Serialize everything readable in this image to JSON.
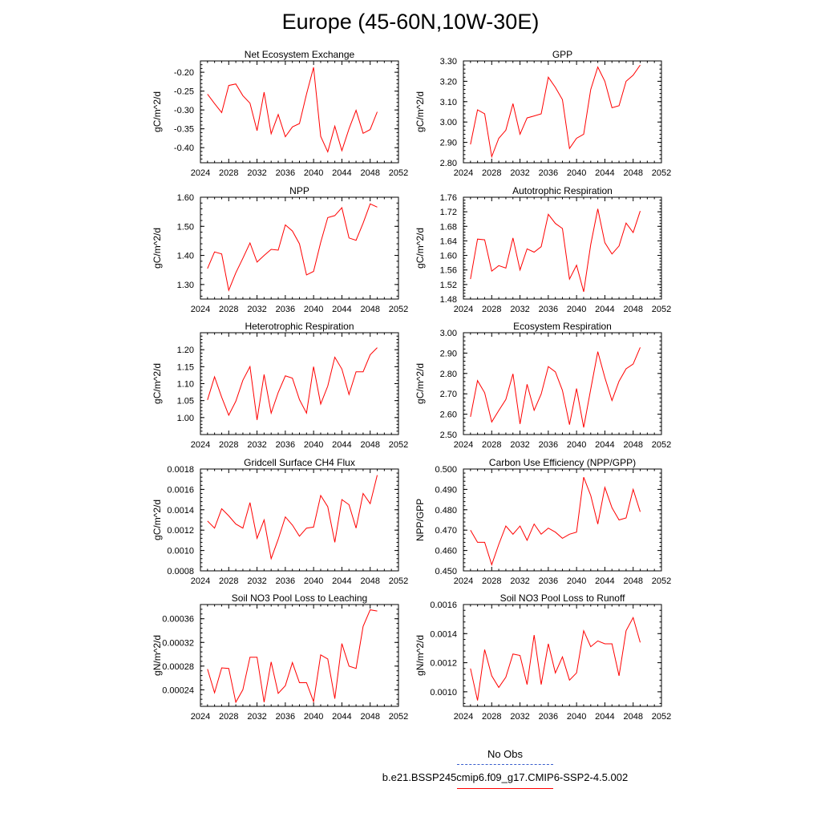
{
  "page_title": "Europe (45-60N,10W-30E)",
  "legend": {
    "entries": [
      {
        "label": "No Obs",
        "color": "#3a5fcd",
        "dash": "dashed"
      },
      {
        "label": "b.e21.BSSP245cmip6.f09_g17.CMIP6-SSP2-4.5.002",
        "color": "#ff0000",
        "dash": "solid"
      }
    ]
  },
  "chart_data": [
    {
      "type": "line",
      "title": "Net Ecosystem Exchange",
      "xlabel": "",
      "ylabel": "gC/m^2/d",
      "xlim": [
        2024,
        2052
      ],
      "ylim": [
        -0.44,
        -0.17
      ],
      "xticks": [
        2024,
        2028,
        2032,
        2036,
        2040,
        2044,
        2048,
        2052
      ],
      "yticks": [
        -0.4,
        -0.35,
        -0.3,
        -0.25,
        -0.2
      ],
      "ytick_labels": [
        "-0.40",
        "-0.35",
        "-0.30",
        "-0.25",
        "-0.20"
      ],
      "series": [
        {
          "color": "#ff0000",
          "x": [
            2025,
            2026,
            2027,
            2028,
            2029,
            2030,
            2031,
            2032,
            2033,
            2034,
            2035,
            2036,
            2037,
            2038,
            2039,
            2040,
            2041,
            2042,
            2043,
            2044,
            2045,
            2046,
            2047,
            2048,
            2049
          ],
          "values": [
            -0.258,
            -0.283,
            -0.307,
            -0.235,
            -0.231,
            -0.262,
            -0.282,
            -0.355,
            -0.253,
            -0.363,
            -0.312,
            -0.371,
            -0.345,
            -0.336,
            -0.258,
            -0.187,
            -0.37,
            -0.411,
            -0.343,
            -0.408,
            -0.35,
            -0.301,
            -0.362,
            -0.352,
            -0.305
          ]
        }
      ]
    },
    {
      "type": "line",
      "title": "GPP",
      "xlabel": "",
      "ylabel": "gC/m^2/d",
      "xlim": [
        2024,
        2052
      ],
      "ylim": [
        2.8,
        3.3
      ],
      "xticks": [
        2024,
        2028,
        2032,
        2036,
        2040,
        2044,
        2048,
        2052
      ],
      "yticks": [
        2.8,
        2.9,
        3.0,
        3.1,
        3.2,
        3.3
      ],
      "ytick_labels": [
        "2.80",
        "2.90",
        "3.00",
        "3.10",
        "3.20",
        "3.30"
      ],
      "series": [
        {
          "color": "#ff0000",
          "x": [
            2025,
            2026,
            2027,
            2028,
            2029,
            2030,
            2031,
            2032,
            2033,
            2034,
            2035,
            2036,
            2037,
            2038,
            2039,
            2040,
            2041,
            2042,
            2043,
            2044,
            2045,
            2046,
            2047,
            2048,
            2049
          ],
          "values": [
            2.89,
            3.06,
            3.04,
            2.83,
            2.92,
            2.96,
            3.09,
            2.94,
            3.02,
            3.03,
            3.04,
            3.22,
            3.17,
            3.11,
            2.87,
            2.92,
            2.94,
            3.16,
            3.27,
            3.2,
            3.07,
            3.08,
            3.2,
            3.23,
            3.28
          ]
        }
      ]
    },
    {
      "type": "line",
      "title": "NPP",
      "xlabel": "",
      "ylabel": "gC/m^2/d",
      "xlim": [
        2024,
        2052
      ],
      "ylim": [
        1.25,
        1.6
      ],
      "xticks": [
        2024,
        2028,
        2032,
        2036,
        2040,
        2044,
        2048,
        2052
      ],
      "yticks": [
        1.3,
        1.4,
        1.5,
        1.6
      ],
      "ytick_labels": [
        "1.30",
        "1.40",
        "1.50",
        "1.60"
      ],
      "series": [
        {
          "color": "#ff0000",
          "x": [
            2025,
            2026,
            2027,
            2028,
            2029,
            2030,
            2031,
            2032,
            2033,
            2034,
            2035,
            2036,
            2037,
            2038,
            2039,
            2040,
            2041,
            2042,
            2043,
            2044,
            2045,
            2046,
            2047,
            2048,
            2049
          ],
          "values": [
            1.355,
            1.412,
            1.405,
            1.28,
            1.34,
            1.39,
            1.443,
            1.377,
            1.4,
            1.421,
            1.418,
            1.505,
            1.484,
            1.44,
            1.333,
            1.345,
            1.445,
            1.53,
            1.537,
            1.564,
            1.46,
            1.452,
            1.511,
            1.577,
            1.566
          ]
        }
      ]
    },
    {
      "type": "line",
      "title": "Autotrophic Respiration",
      "xlabel": "",
      "ylabel": "gC/m^2/d",
      "xlim": [
        2024,
        2052
      ],
      "ylim": [
        1.48,
        1.76
      ],
      "xticks": [
        2024,
        2028,
        2032,
        2036,
        2040,
        2044,
        2048,
        2052
      ],
      "yticks": [
        1.48,
        1.52,
        1.56,
        1.6,
        1.64,
        1.68,
        1.72,
        1.76
      ],
      "ytick_labels": [
        "1.48",
        "1.52",
        "1.56",
        "1.60",
        "1.64",
        "1.68",
        "1.72",
        "1.76"
      ],
      "series": [
        {
          "color": "#ff0000",
          "x": [
            2025,
            2026,
            2027,
            2028,
            2029,
            2030,
            2031,
            2032,
            2033,
            2034,
            2035,
            2036,
            2037,
            2038,
            2039,
            2040,
            2041,
            2042,
            2043,
            2044,
            2045,
            2046,
            2047,
            2048,
            2049
          ],
          "values": [
            1.535,
            1.645,
            1.643,
            1.557,
            1.572,
            1.565,
            1.648,
            1.56,
            1.618,
            1.609,
            1.624,
            1.713,
            1.688,
            1.674,
            1.535,
            1.573,
            1.5,
            1.63,
            1.728,
            1.635,
            1.604,
            1.626,
            1.689,
            1.663,
            1.722
          ]
        }
      ]
    },
    {
      "type": "line",
      "title": "Heterotrophic Respiration",
      "xlabel": "",
      "ylabel": "gC/m^2/d",
      "xlim": [
        2024,
        2052
      ],
      "ylim": [
        0.95,
        1.25
      ],
      "xticks": [
        2024,
        2028,
        2032,
        2036,
        2040,
        2044,
        2048,
        2052
      ],
      "yticks": [
        1.0,
        1.05,
        1.1,
        1.15,
        1.2
      ],
      "ytick_labels": [
        "1.00",
        "1.05",
        "1.10",
        "1.15",
        "1.20"
      ],
      "series": [
        {
          "color": "#ff0000",
          "x": [
            2025,
            2026,
            2027,
            2028,
            2029,
            2030,
            2031,
            2032,
            2033,
            2034,
            2035,
            2036,
            2037,
            2038,
            2039,
            2040,
            2041,
            2042,
            2043,
            2044,
            2045,
            2046,
            2047,
            2048,
            2049
          ],
          "values": [
            1.052,
            1.12,
            1.06,
            1.007,
            1.048,
            1.11,
            1.15,
            0.993,
            1.127,
            1.013,
            1.074,
            1.123,
            1.116,
            1.053,
            1.013,
            1.15,
            1.04,
            1.093,
            1.178,
            1.143,
            1.068,
            1.135,
            1.135,
            1.185,
            1.206
          ]
        }
      ]
    },
    {
      "type": "line",
      "title": "Ecosystem Respiration",
      "xlabel": "",
      "ylabel": "gC/m^2/d",
      "xlim": [
        2024,
        2052
      ],
      "ylim": [
        2.5,
        3.0
      ],
      "xticks": [
        2024,
        2028,
        2032,
        2036,
        2040,
        2044,
        2048,
        2052
      ],
      "yticks": [
        2.5,
        2.6,
        2.7,
        2.8,
        2.9,
        3.0
      ],
      "ytick_labels": [
        "2.50",
        "2.60",
        "2.70",
        "2.80",
        "2.90",
        "3.00"
      ],
      "series": [
        {
          "color": "#ff0000",
          "x": [
            2025,
            2026,
            2027,
            2028,
            2029,
            2030,
            2031,
            2032,
            2033,
            2034,
            2035,
            2036,
            2037,
            2038,
            2039,
            2040,
            2041,
            2042,
            2043,
            2044,
            2045,
            2046,
            2047,
            2048,
            2049
          ],
          "values": [
            2.587,
            2.765,
            2.705,
            2.562,
            2.618,
            2.672,
            2.798,
            2.552,
            2.747,
            2.619,
            2.699,
            2.834,
            2.808,
            2.717,
            2.549,
            2.726,
            2.535,
            2.723,
            2.907,
            2.78,
            2.667,
            2.762,
            2.823,
            2.846,
            2.928
          ]
        }
      ]
    },
    {
      "type": "line",
      "title": "Gridcell Surface CH4 Flux",
      "xlabel": "",
      "ylabel": "gC/m^2/d",
      "xlim": [
        2024,
        2052
      ],
      "ylim": [
        0.0008,
        0.0018
      ],
      "xticks": [
        2024,
        2028,
        2032,
        2036,
        2040,
        2044,
        2048,
        2052
      ],
      "yticks": [
        0.0008,
        0.001,
        0.0012,
        0.0014,
        0.0016,
        0.0018
      ],
      "ytick_labels": [
        "0.0008",
        "0.0010",
        "0.0012",
        "0.0014",
        "0.0016",
        "0.0018"
      ],
      "series": [
        {
          "color": "#ff0000",
          "x": [
            2025,
            2026,
            2027,
            2028,
            2029,
            2030,
            2031,
            2032,
            2033,
            2034,
            2035,
            2036,
            2037,
            2038,
            2039,
            2040,
            2041,
            2042,
            2043,
            2044,
            2045,
            2046,
            2047,
            2048,
            2049
          ],
          "values": [
            0.00129,
            0.00122,
            0.00141,
            0.00134,
            0.00126,
            0.00122,
            0.00147,
            0.00112,
            0.0013,
            0.00092,
            0.00111,
            0.00133,
            0.00125,
            0.00114,
            0.00122,
            0.00123,
            0.00154,
            0.00143,
            0.00108,
            0.0015,
            0.00145,
            0.00122,
            0.00156,
            0.00146,
            0.00174
          ]
        }
      ]
    },
    {
      "type": "line",
      "title": "Carbon Use Efficiency (NPP/GPP)",
      "xlabel": "",
      "ylabel": "NPP/GPP",
      "xlim": [
        2024,
        2052
      ],
      "ylim": [
        0.45,
        0.5
      ],
      "xticks": [
        2024,
        2028,
        2032,
        2036,
        2040,
        2044,
        2048,
        2052
      ],
      "yticks": [
        0.45,
        0.46,
        0.47,
        0.48,
        0.49,
        0.5
      ],
      "ytick_labels": [
        "0.450",
        "0.460",
        "0.470",
        "0.480",
        "0.490",
        "0.500"
      ],
      "series": [
        {
          "color": "#ff0000",
          "x": [
            2025,
            2026,
            2027,
            2028,
            2029,
            2030,
            2031,
            2032,
            2033,
            2034,
            2035,
            2036,
            2037,
            2038,
            2039,
            2040,
            2041,
            2042,
            2043,
            2044,
            2045,
            2046,
            2047,
            2048,
            2049
          ],
          "values": [
            0.47,
            0.464,
            0.464,
            0.453,
            0.463,
            0.472,
            0.468,
            0.472,
            0.465,
            0.473,
            0.468,
            0.471,
            0.469,
            0.466,
            0.468,
            0.469,
            0.496,
            0.487,
            0.473,
            0.491,
            0.481,
            0.475,
            0.476,
            0.49,
            0.479
          ]
        }
      ]
    },
    {
      "type": "line",
      "title": "Soil NO3 Pool Loss to Leaching",
      "xlabel": "",
      "ylabel": "gN/m^2/d",
      "xlim": [
        2024,
        2052
      ],
      "ylim": [
        0.000212,
        0.000384
      ],
      "xticks": [
        2024,
        2028,
        2032,
        2036,
        2040,
        2044,
        2048,
        2052
      ],
      "yticks": [
        0.00024,
        0.00028,
        0.00032,
        0.00036
      ],
      "ytick_labels": [
        "0.00024",
        "0.00028",
        "0.00032",
        "0.00036"
      ],
      "series": [
        {
          "color": "#ff0000",
          "x": [
            2025,
            2026,
            2027,
            2028,
            2029,
            2030,
            2031,
            2032,
            2033,
            2034,
            2035,
            2036,
            2037,
            2038,
            2039,
            2040,
            2041,
            2042,
            2043,
            2044,
            2045,
            2046,
            2047,
            2048,
            2049
          ],
          "values": [
            0.000275,
            0.000235,
            0.000277,
            0.000276,
            0.000219,
            0.00024,
            0.000295,
            0.000295,
            0.000219,
            0.000287,
            0.000234,
            0.000247,
            0.000286,
            0.000252,
            0.000252,
            0.00022,
            0.000299,
            0.000292,
            0.000225,
            0.000318,
            0.00028,
            0.000276,
            0.000347,
            0.000375,
            0.000373
          ]
        }
      ]
    },
    {
      "type": "line",
      "title": "Soil NO3 Pool Loss to Runoff",
      "xlabel": "",
      "ylabel": "gN/m^2/d",
      "xlim": [
        2024,
        2052
      ],
      "ylim": [
        0.0009,
        0.0016
      ],
      "xticks": [
        2024,
        2028,
        2032,
        2036,
        2040,
        2044,
        2048,
        2052
      ],
      "yticks": [
        0.001,
        0.0012,
        0.0014,
        0.0016
      ],
      "ytick_labels": [
        "0.0010",
        "0.0012",
        "0.0014",
        "0.0016"
      ],
      "series": [
        {
          "color": "#ff0000",
          "x": [
            2025,
            2026,
            2027,
            2028,
            2029,
            2030,
            2031,
            2032,
            2033,
            2034,
            2035,
            2036,
            2037,
            2038,
            2039,
            2040,
            2041,
            2042,
            2043,
            2044,
            2045,
            2046,
            2047,
            2048,
            2049
          ],
          "values": [
            0.00116,
            0.00094,
            0.00129,
            0.00111,
            0.00103,
            0.0011,
            0.00126,
            0.00125,
            0.00105,
            0.00139,
            0.00105,
            0.00133,
            0.00113,
            0.00124,
            0.00108,
            0.00113,
            0.00142,
            0.00131,
            0.00135,
            0.00133,
            0.00133,
            0.00111,
            0.00142,
            0.00151,
            0.00134
          ]
        }
      ]
    }
  ]
}
